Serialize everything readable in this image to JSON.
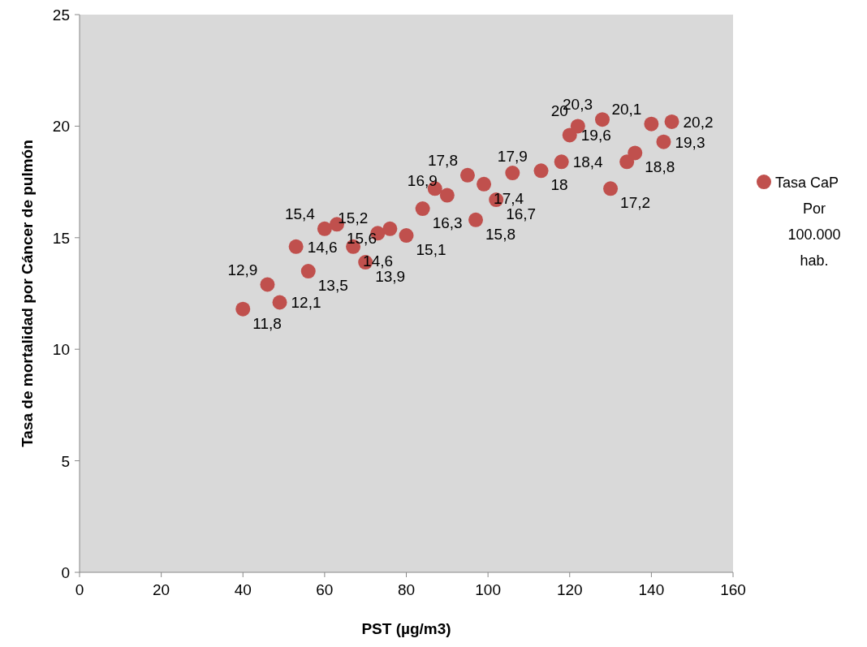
{
  "chart_data": {
    "type": "scatter",
    "xlabel": "PST (µg/m3)",
    "ylabel": "Tasa de mortalidad  por Cáncer de pulmón",
    "x": [
      40,
      46,
      49,
      53,
      56,
      60,
      63,
      67,
      70,
      73,
      76,
      80,
      84,
      87,
      90,
      95,
      97,
      99,
      102,
      106,
      113,
      118,
      120,
      122,
      128,
      130,
      134,
      136,
      140,
      143,
      145
    ],
    "series": [
      {
        "name": "Tasa CaP Por 100.000 hab.",
        "color": "#c0504d",
        "values": [
          11.8,
          12.9,
          12.1,
          14.6,
          13.5,
          15.4,
          15.6,
          14.6,
          13.9,
          15.2,
          15.4,
          15.1,
          16.3,
          17.2,
          16.9,
          17.8,
          15.8,
          17.4,
          16.7,
          17.9,
          18,
          18.4,
          19.6,
          20,
          20.3,
          17.2,
          18.4,
          18.8,
          20.1,
          19.3,
          20.2
        ],
        "value_labels": [
          "11,8",
          "12,9",
          "12,1",
          "14,6",
          "13,5",
          "15,4",
          "15,6",
          "14,6",
          "13,9",
          "15,2",
          null,
          "15,1",
          "16,3",
          null,
          "16,9",
          "17,8",
          "15,8",
          "17,4",
          "16,7",
          "17,9",
          "18",
          "18,4",
          "19,6",
          "20",
          "20,3",
          "17,2",
          null,
          "18,8",
          "20,1",
          "19,3",
          "20,2"
        ]
      }
    ],
    "xlim": [
      0,
      160
    ],
    "xticks": [
      0,
      20,
      40,
      60,
      80,
      100,
      120,
      140,
      160
    ],
    "ylim": [
      0,
      25
    ],
    "yticks": [
      0,
      5,
      10,
      15,
      20,
      25
    ],
    "grid": false,
    "legend": "right",
    "marker": "circle"
  }
}
